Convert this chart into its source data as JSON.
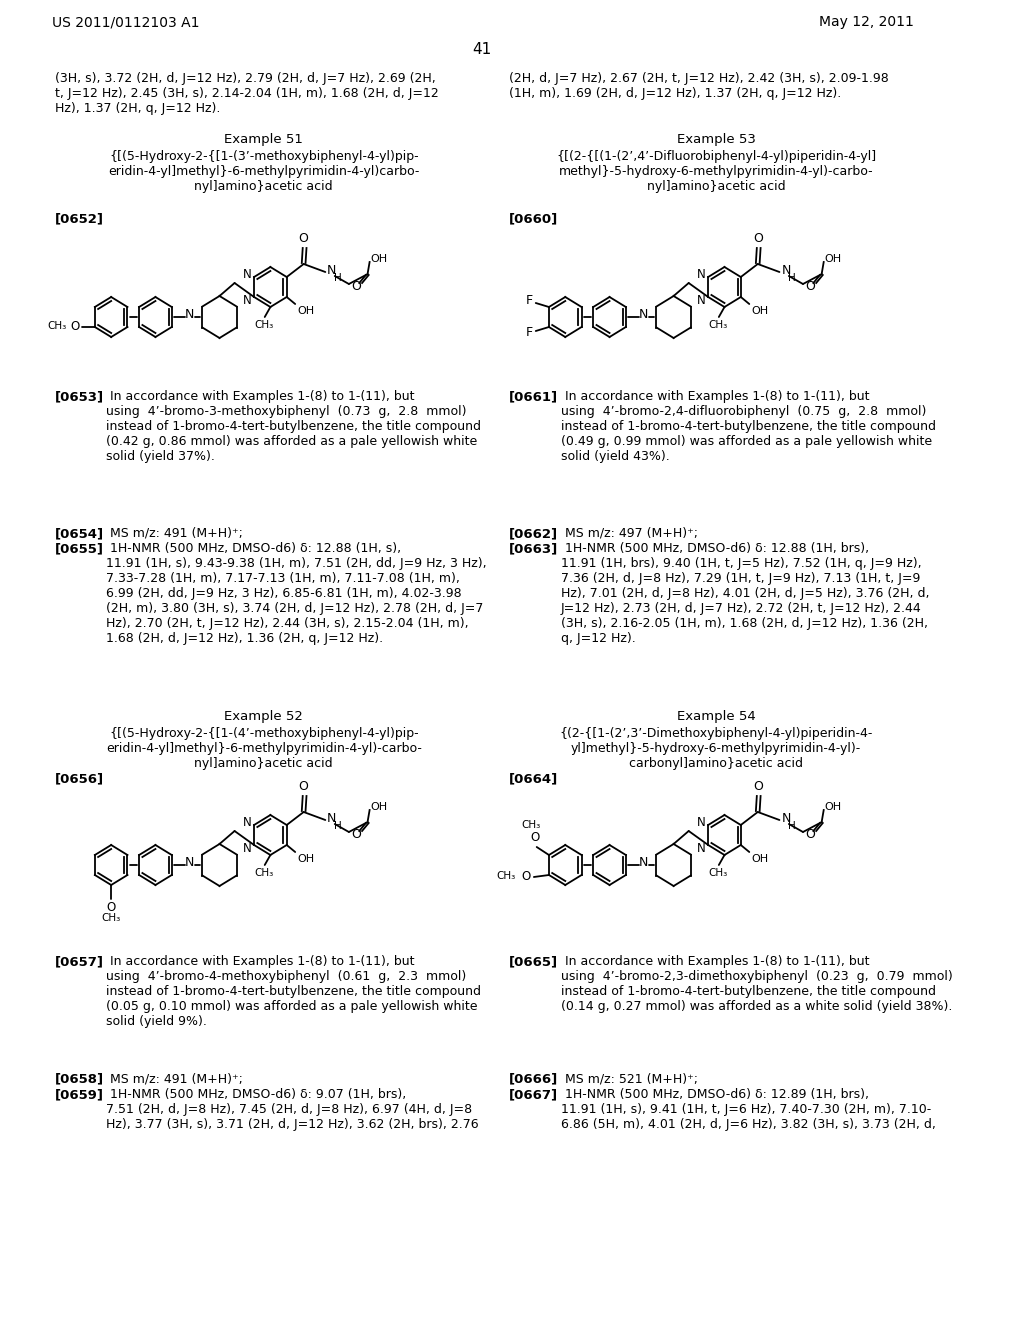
{
  "background_color": "#ffffff",
  "header_left": "US 2011/0112103 A1",
  "header_right": "May 12, 2011",
  "page_number": "41"
}
